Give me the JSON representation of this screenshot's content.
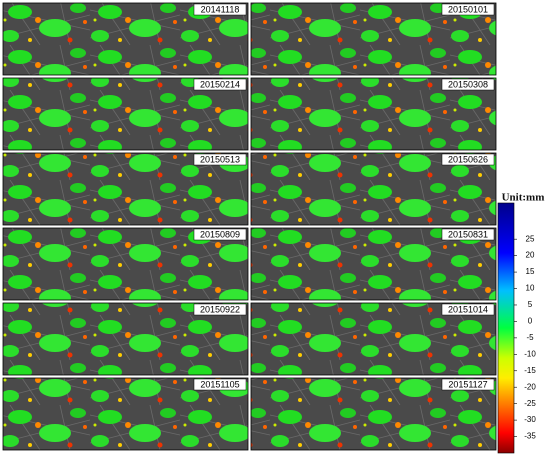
{
  "panels": [
    {
      "label": "20141118"
    },
    {
      "label": "20150101"
    },
    {
      "label": "20150214"
    },
    {
      "label": "20150308"
    },
    {
      "label": "20150513"
    },
    {
      "label": "20150626"
    },
    {
      "label": "20150809"
    },
    {
      "label": "20150831"
    },
    {
      "label": "20150922"
    },
    {
      "label": "20151014"
    },
    {
      "label": "20151105"
    },
    {
      "label": "20151127"
    }
  ],
  "colorbar": {
    "title": "Unit:mm",
    "range": [
      -40,
      36
    ],
    "ticks": [
      25,
      20,
      15,
      10,
      5,
      0,
      -5,
      -10,
      -15,
      -20,
      -25,
      -30,
      -35
    ]
  }
}
